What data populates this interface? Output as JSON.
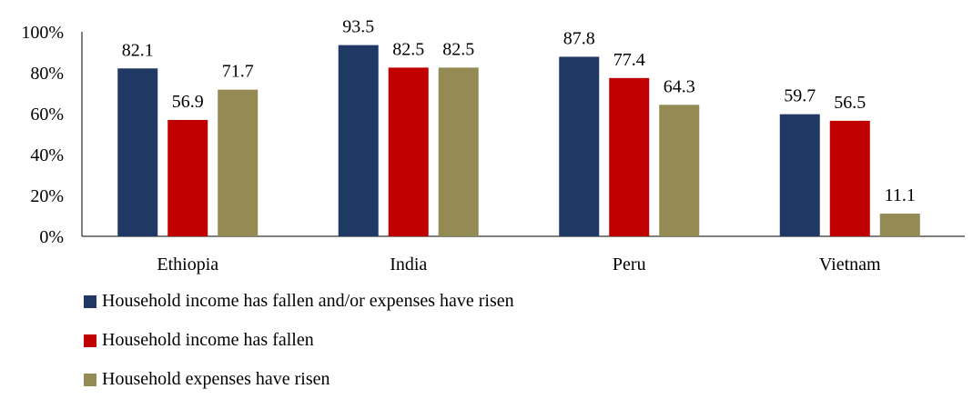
{
  "chart_data": {
    "type": "bar",
    "categories": [
      "Ethiopia",
      "India",
      "Peru",
      "Vietnam"
    ],
    "series": [
      {
        "name": "Household income has fallen and/or expenses have risen",
        "values": [
          82.1,
          93.5,
          87.8,
          59.7
        ],
        "labels": [
          "82.1",
          "93.5",
          "87.8",
          "59.7"
        ],
        "color": "#1F3864"
      },
      {
        "name": "Household income has fallen",
        "values": [
          56.9,
          82.5,
          77.4,
          56.5
        ],
        "labels": [
          "56.9",
          "82.5",
          "77.4",
          "56.5"
        ],
        "color": "#C00000"
      },
      {
        "name": "Household expenses have risen",
        "values": [
          71.7,
          82.5,
          64.3,
          11.1
        ],
        "labels": [
          "71.7",
          "82.5",
          "64.3",
          "11.1"
        ],
        "color": "#948A54"
      }
    ],
    "ylim": [
      0,
      100
    ],
    "yticks": [
      0,
      20,
      40,
      60,
      80,
      100
    ],
    "ytick_labels": [
      "0%",
      "20%",
      "40%",
      "60%",
      "80%",
      "100%"
    ],
    "grid": false,
    "legend_position": "bottom-left"
  }
}
